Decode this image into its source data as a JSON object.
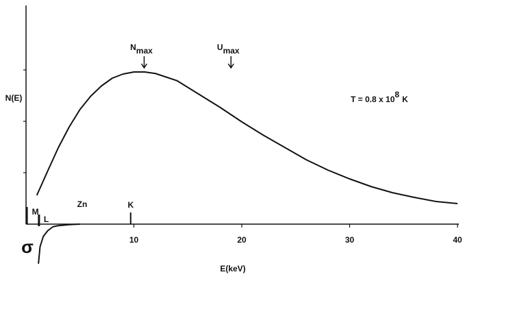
{
  "chart_data": {
    "type": "line",
    "x_label": "E(keV)",
    "y_label": "N(E)",
    "xlim": [
      0,
      40
    ],
    "xticks": [
      10,
      20,
      30,
      40
    ],
    "ylim": [
      -0.8,
      4.25
    ],
    "yticks": [
      1,
      2,
      3
    ],
    "series": [
      {
        "color": "#111111",
        "x": [
          1,
          2,
          3,
          4,
          5,
          6,
          7,
          8,
          9,
          10,
          11,
          12,
          14,
          16,
          18,
          20,
          22,
          24,
          26,
          28,
          30,
          32,
          34,
          36,
          38,
          40
        ],
        "values": [
          0.56,
          1.03,
          1.49,
          1.89,
          2.23,
          2.49,
          2.69,
          2.84,
          2.92,
          2.96,
          2.96,
          2.93,
          2.79,
          2.53,
          2.27,
          1.99,
          1.73,
          1.49,
          1.25,
          1.05,
          0.88,
          0.73,
          0.61,
          0.52,
          0.44,
          0.4
        ]
      },
      {
        "color": "#111111",
        "x": [
          1.15,
          1.3,
          1.6,
          2,
          2.5,
          3,
          4,
          5
        ],
        "values": [
          -0.77,
          -0.44,
          -0.24,
          -0.13,
          -0.05,
          -0.03,
          -0.01,
          0
        ]
      }
    ],
    "sigma_label": "σ",
    "element_label": "Zn",
    "edges": [
      {
        "text": "M",
        "x": 0.1
      },
      {
        "text": "L",
        "x": 1.2
      },
      {
        "text": "K",
        "x": 9.7
      }
    ],
    "arrows": [
      {
        "text": "N",
        "subscript": "max",
        "x": 10.95
      },
      {
        "text": "U",
        "subscript": "max",
        "x": 19.0
      }
    ],
    "temperature": {
      "text": "T = 0.8 x 10",
      "superscript": "8",
      "unit": "K"
    }
  }
}
